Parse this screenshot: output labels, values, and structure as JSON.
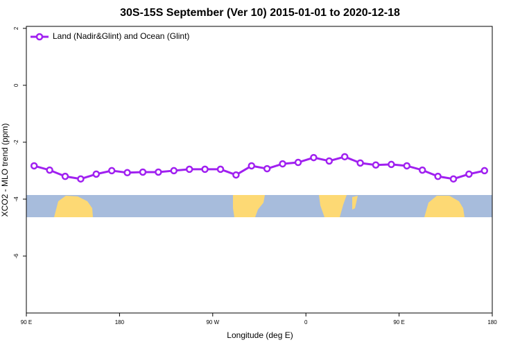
{
  "chart_data": {
    "type": "line",
    "title": "30S-15S September (Ver 10)   2015-01-01 to 2020-12-18",
    "xlabel": "Longitude (deg E)",
    "ylabel": "XCO2 - MLO trend (ppm)",
    "legend": "top-left",
    "x": [
      97.5,
      112.5,
      127.5,
      142.5,
      157.5,
      172.5,
      187.5,
      202.5,
      217.5,
      232.5,
      247.5,
      262.5,
      277.5,
      292.5,
      307.5,
      322.5,
      337.5,
      352.5,
      367.5,
      382.5,
      397.5,
      412.5,
      427.5,
      442.5,
      457.5,
      472.5,
      487.5,
      502.5,
      517.5,
      532.5
    ],
    "series": [
      {
        "name": "Land (Nadir&Glint) and Ocean (Glint)",
        "color": "#a020f0",
        "values": [
          -2.83,
          -2.98,
          -3.2,
          -3.29,
          -3.12,
          -3.0,
          -3.07,
          -3.05,
          -3.05,
          -3.0,
          -2.95,
          -2.95,
          -2.95,
          -3.15,
          -2.83,
          -2.93,
          -2.76,
          -2.71,
          -2.54,
          -2.66,
          -2.51,
          -2.73,
          -2.8,
          -2.78,
          -2.83,
          -2.98,
          -3.2,
          -3.29,
          -3.12,
          -3.0
        ]
      }
    ],
    "xlim": [
      90,
      540
    ],
    "xticks": [
      {
        "value": 90,
        "label": "90 E"
      },
      180,
      {
        "value": 270,
        "label": "90 W"
      },
      {
        "value": 360,
        "label": "0"
      },
      {
        "value": 450,
        "label": "90 E"
      },
      {
        "value": 540,
        "label": "180"
      }
    ],
    "ylim": [
      -8,
      2.07
    ],
    "yticks": [
      2,
      0,
      -2,
      -4,
      -6
    ]
  }
}
